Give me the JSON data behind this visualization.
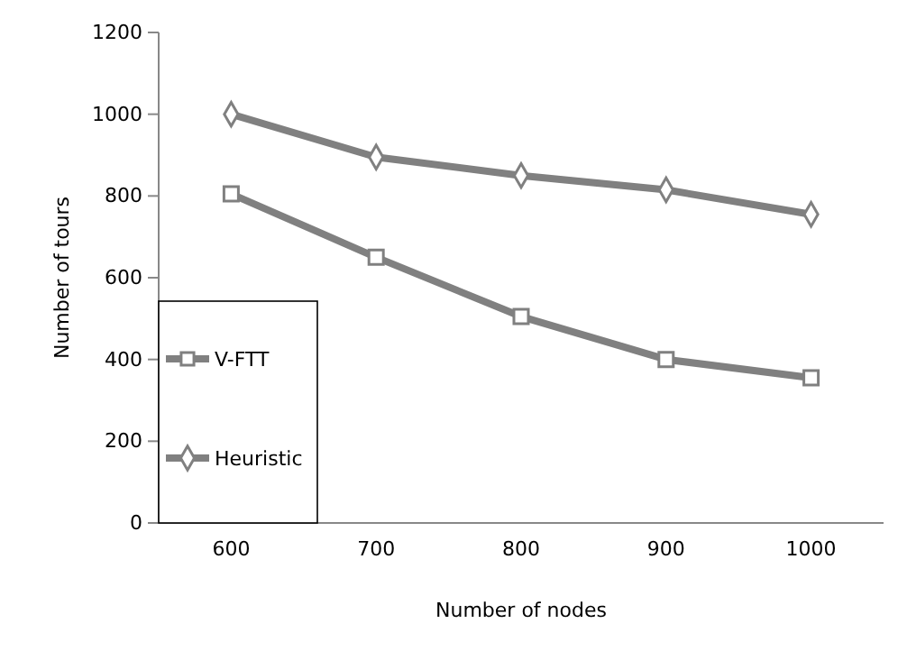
{
  "chart_data": {
    "type": "line",
    "xlabel": "Number of nodes",
    "ylabel": "Number of tours",
    "categories": [
      "600",
      "700",
      "800",
      "900",
      "1000"
    ],
    "series": [
      {
        "name": "V-FTT",
        "color": "#808080",
        "marker": "square",
        "values": [
          805,
          650,
          505,
          400,
          355
        ]
      },
      {
        "name": "Heuristic",
        "color": "#808080",
        "marker": "diamond",
        "values": [
          1000,
          895,
          850,
          815,
          755
        ]
      }
    ],
    "ylim": [
      0,
      1200
    ],
    "yticks": [
      0,
      200,
      400,
      600,
      800,
      1000,
      1200
    ],
    "grid": false,
    "legend": "bottom left",
    "line_style": "solid"
  }
}
